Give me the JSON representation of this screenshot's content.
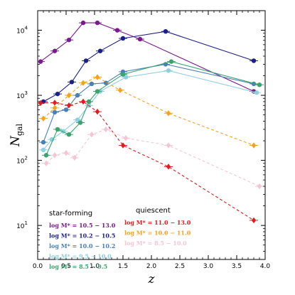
{
  "chart_data": {
    "type": "line",
    "xlabel": "z",
    "ylabel": "N_gal",
    "ylabel_main": "N",
    "ylabel_sub": "gal",
    "xlim": [
      0.0,
      4.0
    ],
    "ylim": [
      3,
      20000
    ],
    "yscale": "log",
    "x_ticks": [
      "0.0",
      "0.5",
      "1.0",
      "1.5",
      "2.0",
      "2.5",
      "3.0",
      "3.5",
      "4.0"
    ],
    "y_ticks": [
      {
        "base": "10",
        "exp": "1"
      },
      {
        "base": "10",
        "exp": "2"
      },
      {
        "base": "10",
        "exp": "3"
      },
      {
        "base": "10",
        "exp": "4"
      }
    ],
    "groups": [
      {
        "heading": "star-forming",
        "linestyle": "solid",
        "marker": "circle",
        "series": [
          {
            "name": "log M* = 10.5 − 13.0",
            "color": "#7b1a8e",
            "x": [
              0.05,
              0.3,
              0.55,
              0.8,
              1.05,
              1.4,
              1.8,
              3.8
            ],
            "y": [
              3300,
              4800,
              7100,
              13000,
              13000,
              10000,
              7300,
              1150
            ]
          },
          {
            "name": "log M* = 10.2 − 10.5",
            "color": "#1b1f8a",
            "x": [
              0.1,
              0.35,
              0.6,
              0.85,
              1.1,
              1.5,
              2.25,
              3.8
            ],
            "y": [
              800,
              1050,
              1600,
              3400,
              4800,
              7500,
              9600,
              3400
            ]
          },
          {
            "name": "log M* = 10.0 − 10.2",
            "color": "#4a7fb8",
            "x": [
              0.1,
              0.3,
              0.5,
              0.7,
              0.95,
              1.2,
              1.5,
              2.25,
              3.8
            ],
            "y": [
              190,
              550,
              600,
              1000,
              1500,
              1550,
              2300,
              3000,
              1500
            ]
          },
          {
            "name": "log M* = 9.5 − 10.0",
            "color": "#8ecfe0",
            "x": [
              0.1,
              0.25,
              0.45,
              0.7,
              0.9,
              1.1,
              1.55,
              2.3,
              3.85
            ],
            "y": [
              145,
              210,
              280,
              420,
              700,
              1150,
              1900,
              2400,
              1100
            ]
          },
          {
            "name": "log M* = 8.5 − 9.5",
            "color": "#3aa36e",
            "x": [
              0.15,
              0.35,
              0.55,
              0.75,
              0.9,
              1.05,
              1.5,
              2.35,
              3.9
            ],
            "y": [
              120,
              300,
              250,
              380,
              800,
              1150,
              2100,
              3300,
              1450
            ]
          }
        ]
      },
      {
        "heading": "quiescent",
        "linestyle": "dashed",
        "marker": "diamond",
        "series": [
          {
            "name": "log M* = 11.0 − 13.0",
            "color": "#e21c1c",
            "x": [
              0.05,
              0.3,
              0.55,
              0.8,
              1.05,
              1.5,
              2.3,
              3.8
            ],
            "y": [
              760,
              770,
              700,
              800,
              560,
              170,
              80,
              12
            ]
          },
          {
            "name": "log M* = 10.0 − 11.0",
            "color": "#f5a21b",
            "x": [
              0.1,
              0.3,
              0.55,
              0.8,
              1.05,
              1.45,
              2.3,
              3.8
            ],
            "y": [
              440,
              640,
              1000,
              1550,
              1900,
              1200,
              530,
              170
            ]
          },
          {
            "name": "log M* = 8.5 − 10.0",
            "color": "#f4c6d3",
            "x": [
              0.15,
              0.3,
              0.5,
              0.65,
              0.95,
              1.2,
              1.55,
              2.3,
              3.9
            ],
            "y": [
              90,
              120,
              130,
              110,
              250,
              300,
              220,
              170,
              40
            ]
          }
        ]
      }
    ]
  }
}
